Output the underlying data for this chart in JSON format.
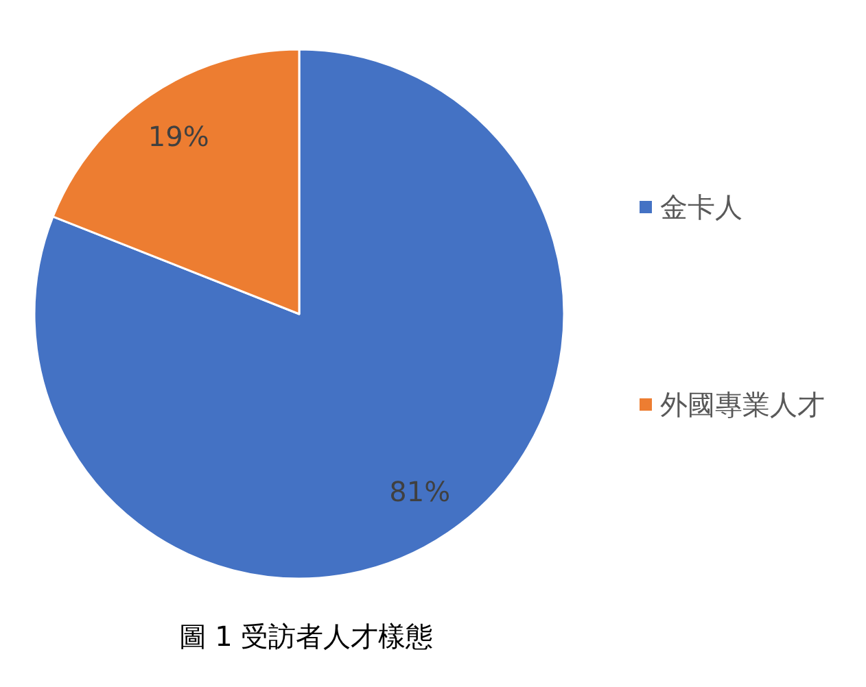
{
  "chart_data": {
    "type": "pie",
    "title": "圖 1 受訪者人才樣態",
    "categories": [
      "金卡人",
      "外國專業人才"
    ],
    "values": [
      81,
      19
    ],
    "colors": [
      "#4472c4",
      "#ed7d31"
    ],
    "value_labels": [
      "81%",
      "19%"
    ],
    "legend": "right"
  }
}
